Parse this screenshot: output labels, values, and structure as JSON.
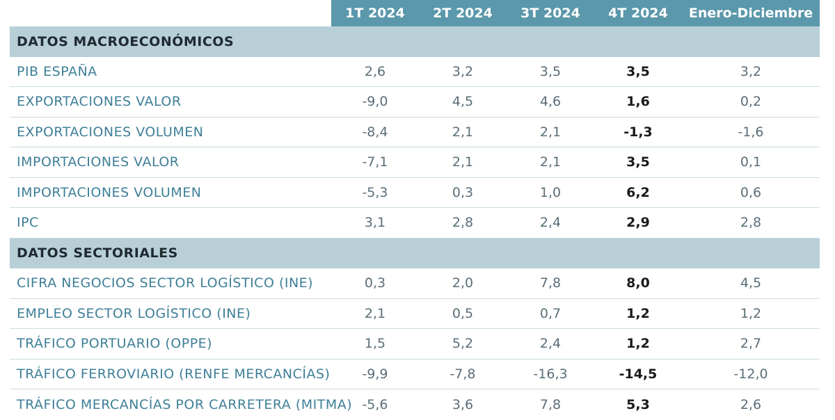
{
  "header": [
    "1T 2024",
    "2T 2024",
    "3T 2024",
    "4T 2024",
    "Enero-Diciembre"
  ],
  "sections": [
    {
      "title": "DATOS MACROECONÓMICOS",
      "rows": [
        {
          "label": "PIB ESPAÑA",
          "values": [
            "2,6",
            "3,2",
            "3,5",
            "3,5",
            "3,2"
          ]
        },
        {
          "label": "EXPORTACIONES VALOR",
          "values": [
            "-9,0",
            "4,5",
            "4,6",
            "1,6",
            "0,2"
          ]
        },
        {
          "label": "EXPORTACIONES VOLUMEN",
          "values": [
            "-8,4",
            "2,1",
            "2,1",
            "-1,3",
            "-1,6"
          ]
        },
        {
          "label": "IMPORTACIONES VALOR",
          "values": [
            "-7,1",
            "2,1",
            "2,1",
            "3,5",
            "0,1"
          ]
        },
        {
          "label": "IMPORTACIONES VOLUMEN",
          "values": [
            "-5,3",
            "0,3",
            "1,0",
            "6,2",
            "0,6"
          ]
        },
        {
          "label": "IPC",
          "values": [
            "3,1",
            "2,8",
            "2,4",
            "2,9",
            "2,8"
          ]
        }
      ]
    },
    {
      "title": "DATOS SECTORIALES",
      "rows": [
        {
          "label": "CIFRA NEGOCIOS SECTOR LOGÍSTICO (INE)",
          "values": [
            "0,3",
            "2,0",
            "7,8",
            "8,0",
            "4,5"
          ]
        },
        {
          "label": "EMPLEO SECTOR LOGÍSTICO (INE)",
          "values": [
            "2,1",
            "0,5",
            "0,7",
            "1,2",
            "1,2"
          ]
        },
        {
          "label": "TRÁFICO PORTUARIO (OPPE)",
          "values": [
            "1,5",
            "5,2",
            "2,4",
            "1,2",
            "2,7"
          ]
        },
        {
          "label": "TRÁFICO FERROVIARIO (RENFE MERCANCÍAS)",
          "values": [
            "-9,9",
            "-7,8",
            "-16,3",
            "-14,5",
            "-12,0"
          ]
        },
        {
          "label": "TRÁFICO MERCANCÍAS POR CARRETERA (MITMA)",
          "values": [
            "-5,6",
            "3,6",
            "7,8",
            "5,3",
            "2,6"
          ]
        }
      ]
    }
  ],
  "colors": {
    "header_bg": "#5b98ab",
    "section_bg": "#b8cfd8",
    "label_text": "#3e7f97"
  }
}
